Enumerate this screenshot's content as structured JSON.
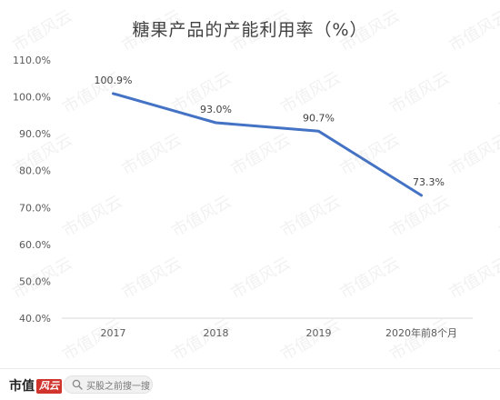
{
  "chart_data": {
    "type": "line",
    "title": "糖果产品的产能利用率（%）",
    "categories": [
      "2017",
      "2018",
      "2019",
      "2020年前8个月"
    ],
    "series": [
      {
        "values": [
          100.9,
          93.0,
          90.7,
          73.3
        ],
        "data_labels": [
          "100.9%",
          "93.0%",
          "90.7%",
          "73.3%"
        ]
      }
    ],
    "ylim": [
      40,
      110
    ],
    "yticks": [
      40,
      50,
      60,
      70,
      80,
      90,
      100,
      110
    ],
    "ytick_labels": [
      "40.0%",
      "50.0%",
      "60.0%",
      "70.0%",
      "80.0%",
      "90.0%",
      "100.0%",
      "110.0%"
    ],
    "xlabel": "",
    "ylabel": "",
    "grid": false,
    "legend": "none",
    "line_color": "#4472C4"
  },
  "watermark": "市值风云",
  "footer": {
    "brand_main": "市值",
    "brand_accent": "风云",
    "search_text": "买股之前搜一搜"
  }
}
